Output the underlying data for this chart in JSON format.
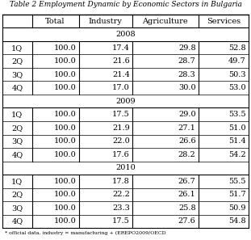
{
  "title": "Table 2 Employment Dynamic by Economic Sectors in Bulgaria",
  "columns": [
    "",
    "Total",
    "Industry",
    "Agriculture",
    "Services"
  ],
  "years": [
    "2008",
    "2009",
    "2010"
  ],
  "rows": {
    "2008": [
      [
        "1Q",
        "100.0",
        "17.4",
        "29.8",
        "52.8"
      ],
      [
        "2Q",
        "100.0",
        "21.6",
        "28.7",
        "49.7"
      ],
      [
        "3Q",
        "100.0",
        "21.4",
        "28.3",
        "50.3"
      ],
      [
        "4Q",
        "100.0",
        "17.0",
        "30.0",
        "53.0"
      ]
    ],
    "2009": [
      [
        "1Q",
        "100.0",
        "17.5",
        "29.0",
        "53.5"
      ],
      [
        "2Q",
        "100.0",
        "21.9",
        "27.1",
        "51.0"
      ],
      [
        "3Q",
        "100.0",
        "22.0",
        "26.6",
        "51.4"
      ],
      [
        "4Q",
        "100.0",
        "17.6",
        "28.2",
        "54.2"
      ]
    ],
    "2010": [
      [
        "1Q",
        "100.0",
        "17.8",
        "26.7",
        "55.5"
      ],
      [
        "2Q",
        "100.0",
        "22.2",
        "26.1",
        "51.7"
      ],
      [
        "3Q",
        "100.0",
        "23.3",
        "25.8",
        "50.9"
      ],
      [
        "4Q",
        "100.0",
        "17.5",
        "27.6",
        "54.8"
      ]
    ]
  },
  "header_fontsize": 7.0,
  "cell_fontsize": 7.0,
  "year_fontsize": 7.0,
  "bg_color": "#ffffff",
  "border_color": "#000000",
  "title_fontsize": 6.5,
  "footnote": "* official data, industry = manufacturing + (EREРО2009/OECD",
  "footnote_fontsize": 4.5,
  "col_props": [
    0.085,
    0.135,
    0.155,
    0.19,
    0.145
  ]
}
